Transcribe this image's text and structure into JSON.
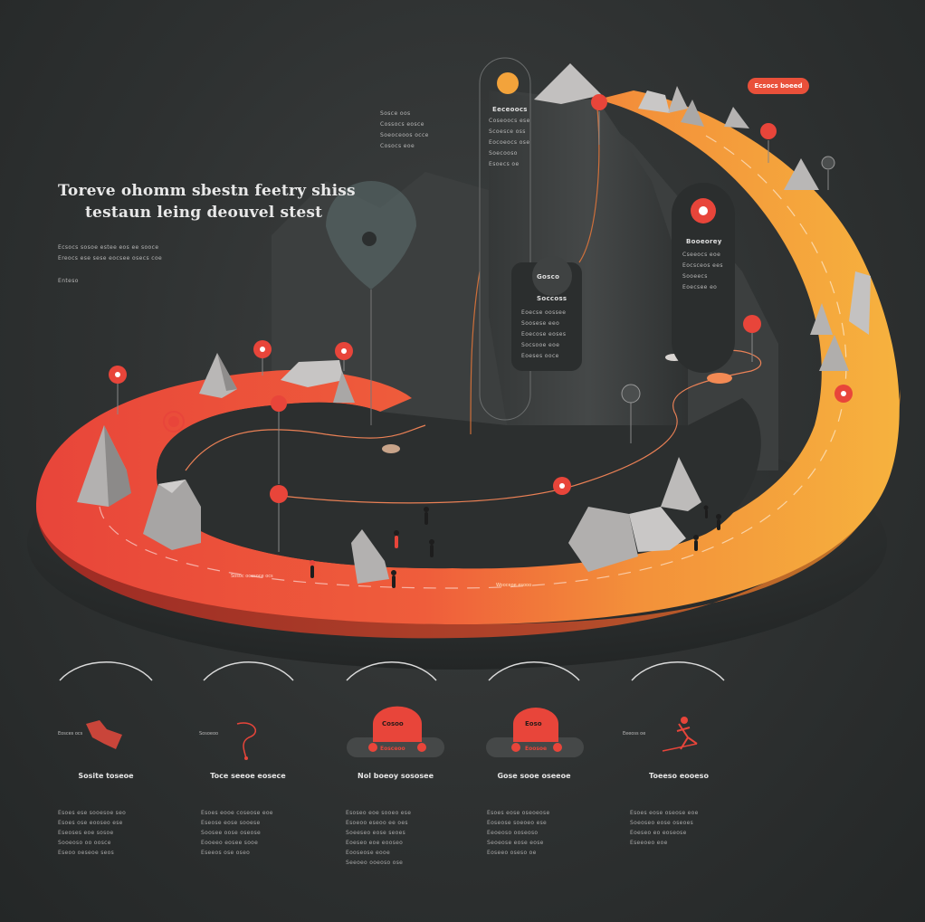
{
  "header": {
    "title_line1": "Toreve ohomm sbestn feetry shiss",
    "title_line2": "testaun leing deouvel stest",
    "intro_lines": [
      "Ecsocs sosoe estee eos ee sooce",
      "Ereocs ese sese eocsee osecs coe",
      "Enteso"
    ]
  },
  "callouts": {
    "left": {
      "lines": [
        "Sosce oos",
        "Cossocs eosce",
        "Soeoceoos occe",
        "Cosocs eoe"
      ]
    },
    "center": {
      "heading": "Eeceoocs",
      "lines": [
        "Coseoocs ese",
        "Scoesce oss",
        "Eocoeocs ose",
        "Soecooso",
        "Esoecs oe"
      ]
    },
    "middle": {
      "bubble": "Gosco",
      "heading": "Soccoss",
      "lines": [
        "Eoecse oossee",
        "Soosese eeo",
        "Eoecose eoses",
        "Socsooe eoe",
        "Eoeses ooce"
      ]
    },
    "right": {
      "heading": "Booeorey",
      "lines": [
        "Cseeocs eoe",
        "Eocsceos ees",
        "Sooeecs",
        "Eoecsee eo"
      ]
    },
    "badge": "Ecsocs boeed"
  },
  "road_labels": {
    "left": "Sosoc ocesoce ocs",
    "right": "Wooceoe esooo"
  },
  "steps": [
    {
      "title": "Sosite toseoe",
      "tag": "Eosces ocs",
      "lines": [
        "Esoes ese sooesoe seo",
        "Esoes ose eooseo ese",
        "Eseoses eoe sosoe",
        "Sooeoso oo oosce",
        "Eseoo oeseoe seos"
      ]
    },
    {
      "title": "Toce seeoe eosece",
      "tag": "Sosoeoo",
      "lines": [
        "Esoes eooe coseose eoe",
        "Eseose eose sooese",
        "Soosee oose oseose",
        "Eooeeo eosee sooe",
        "Eseeos ose oseo"
      ]
    },
    {
      "title": "Nol boeoy sososee",
      "button": "Cosoo",
      "bar": "Eosceoo",
      "lines": [
        "Esoseo eoe sooeo ese",
        "Esoeoo eseoo ee oes",
        "Soeeseo eose seoes",
        "Eoeseo eoe eooseo",
        "Eooseose eooe",
        "Seeoeo ooeoso ose"
      ]
    },
    {
      "title": "Gose sooe oseeoe",
      "button": "Eoso",
      "bar": "Eoosoe",
      "lines": [
        "Esoes eose oseoeose",
        "Eoseose soeoeo ese",
        "Eeoeoso ooseoso",
        "Seoeose eose eose",
        "Eoseeo oseso oe"
      ]
    },
    {
      "title": "Toeeso eooeso",
      "tag": "Eeeoss oe",
      "lines": [
        "Esoes eose oseose eoe",
        "Soeoseo eose oseoes",
        "Eoeseo eo eoseose",
        "Eseeoeo eoe"
      ]
    }
  ],
  "colors": {
    "background": "#2e3131",
    "track_red": "#e8453a",
    "track_orange": "#f3a33b",
    "track_yellow": "#f6b23e",
    "pin": "#e8453a",
    "badge": "#e9503a",
    "rock": "#b9b7b6",
    "panel": "#3f4242"
  },
  "icons": [
    "location-pin-icon",
    "hiker-icon",
    "route-icon",
    "map-icon",
    "runner-icon"
  ]
}
